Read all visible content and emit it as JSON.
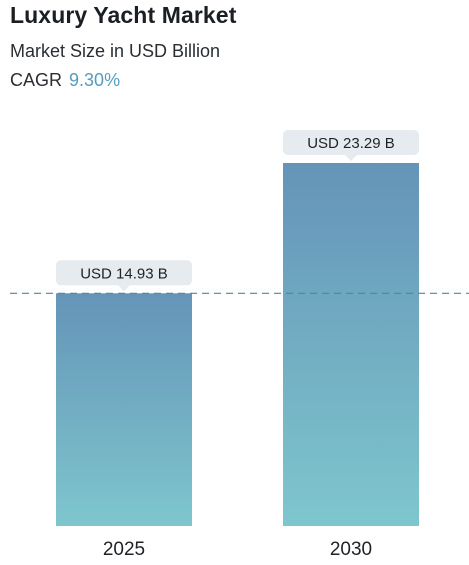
{
  "header": {
    "title": "Luxury Yacht Market",
    "subtitle": "Market Size in USD Billion",
    "cagr_label": "CAGR",
    "cagr_value": "9.30%"
  },
  "colors": {
    "bar_top": "#6594b8",
    "bar_bottom": "#7ec6cd",
    "label_box": "#e6ebef",
    "dashed_line": "#4f86a8",
    "accent": "#5a9bbd"
  },
  "chart_data": {
    "type": "bar",
    "title": "Luxury Yacht Market",
    "subtitle": "Market Size in USD Billion",
    "categories": [
      "2025",
      "2030"
    ],
    "values": [
      14.93,
      23.29
    ],
    "value_labels": [
      "USD 14.93 B",
      "USD 23.29 B"
    ],
    "reference_line": 14.93,
    "ylim": [
      0,
      23.29
    ],
    "grid": false,
    "legend": "none"
  }
}
